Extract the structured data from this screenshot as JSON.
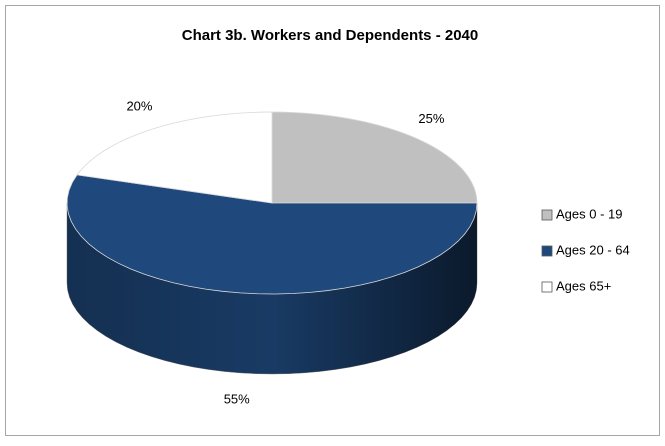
{
  "chart_data": {
    "type": "pie3d",
    "title": "Chart 3b. Workers and Dependents - 2040",
    "categories": [
      "Ages 0 - 19",
      "Ages 20 - 64",
      "Ages 65+"
    ],
    "values": [
      25,
      55,
      20
    ],
    "value_labels": [
      "25%",
      "55%",
      "20%"
    ],
    "colors": [
      "#c0c0c0",
      "#1f497d",
      "#ffffff"
    ],
    "legend": "right"
  }
}
